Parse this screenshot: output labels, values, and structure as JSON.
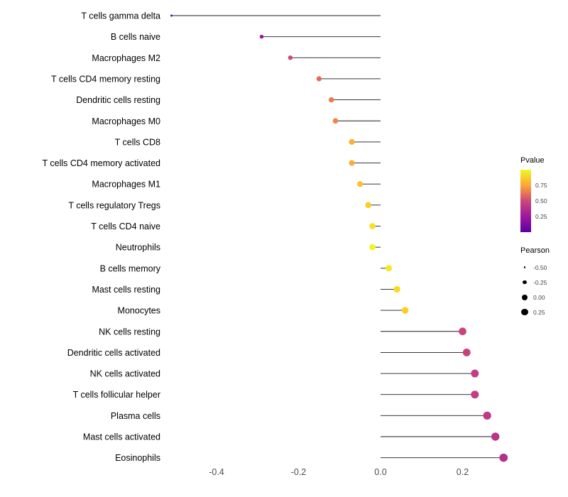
{
  "figure": {
    "background": "#ffffff"
  },
  "chart_data": {
    "type": "scatter",
    "variant": "lollipop",
    "orientation": "horizontal",
    "title": "",
    "xlabel": "",
    "ylabel": "",
    "xlim": [
      -0.55,
      0.32
    ],
    "x_ticks": [
      -0.4,
      -0.2,
      0.0,
      0.2
    ],
    "x_tick_labels": [
      "-0.4",
      "-0.2",
      "0.0",
      "0.2"
    ],
    "grid": false,
    "baseline_x": 0,
    "points": [
      {
        "label": "T cells gamma delta",
        "pearson": -0.51,
        "pvalue_approx": 0.08,
        "color": "#4b03a1"
      },
      {
        "label": "B cells naive",
        "pearson": -0.29,
        "pvalue_approx": 0.32,
        "color": "#9c179e"
      },
      {
        "label": "Macrophages M2",
        "pearson": -0.22,
        "pvalue_approx": 0.5,
        "color": "#cc4778"
      },
      {
        "label": "T cells CD4 memory resting",
        "pearson": -0.15,
        "pvalue_approx": 0.62,
        "color": "#e5695d"
      },
      {
        "label": "Dendritic cells resting",
        "pearson": -0.12,
        "pvalue_approx": 0.67,
        "color": "#ee7b4f"
      },
      {
        "label": "Macrophages M0",
        "pearson": -0.11,
        "pvalue_approx": 0.7,
        "color": "#f2844b"
      },
      {
        "label": "T cells CD8",
        "pearson": -0.07,
        "pvalue_approx": 0.84,
        "color": "#fcb231"
      },
      {
        "label": "T cells CD4 memory activated",
        "pearson": -0.07,
        "pvalue_approx": 0.83,
        "color": "#fcae32"
      },
      {
        "label": "Macrophages M1",
        "pearson": -0.05,
        "pvalue_approx": 0.88,
        "color": "#fcc32c"
      },
      {
        "label": "T cells regulatory Tregs",
        "pearson": -0.03,
        "pvalue_approx": 0.92,
        "color": "#fcce25"
      },
      {
        "label": "T cells CD4 naive",
        "pearson": -0.02,
        "pvalue_approx": 0.96,
        "color": "#f8e125"
      },
      {
        "label": "Neutrophils",
        "pearson": -0.02,
        "pvalue_approx": 0.98,
        "color": "#f1f525"
      },
      {
        "label": "B cells memory",
        "pearson": 0.02,
        "pvalue_approx": 0.97,
        "color": "#f4ea23"
      },
      {
        "label": "Mast cells resting",
        "pearson": 0.04,
        "pvalue_approx": 0.94,
        "color": "#fada24"
      },
      {
        "label": "Monocytes",
        "pearson": 0.06,
        "pvalue_approx": 0.92,
        "color": "#fcce25"
      },
      {
        "label": "NK cells resting",
        "pearson": 0.2,
        "pvalue_approx": 0.48,
        "color": "#ca4379"
      },
      {
        "label": "Dendritic cells activated",
        "pearson": 0.21,
        "pvalue_approx": 0.47,
        "color": "#c8417b"
      },
      {
        "label": "NK cells activated",
        "pearson": 0.23,
        "pvalue_approx": 0.45,
        "color": "#c43e7f"
      },
      {
        "label": "T cells follicular helper",
        "pearson": 0.23,
        "pvalue_approx": 0.45,
        "color": "#c43e7f"
      },
      {
        "label": "Plasma cells",
        "pearson": 0.26,
        "pvalue_approx": 0.42,
        "color": "#be3885"
      },
      {
        "label": "Mast cells activated",
        "pearson": 0.28,
        "pvalue_approx": 0.4,
        "color": "#ba3488"
      },
      {
        "label": "Eosinophils",
        "pearson": 0.3,
        "pvalue_approx": 0.38,
        "color": "#b52f8c"
      }
    ],
    "legends": {
      "color": {
        "title": "Pvalue",
        "tick_labels": [
          "0.75",
          "0.50",
          "0.25"
        ],
        "gradient_top_to_bottom": [
          "#f0f921",
          "#fca636",
          "#cc4778",
          "#9c179e",
          "#5b01a5"
        ],
        "position": "right"
      },
      "size": {
        "title": "Pearson",
        "entries": [
          {
            "label": "-0.50",
            "r": 1.3
          },
          {
            "label": "-0.25",
            "r": 2.7
          },
          {
            "label": "0.00",
            "r": 4.0
          },
          {
            "label": "0.25",
            "r": 4.9
          }
        ],
        "position": "right"
      }
    },
    "style": {
      "stem_color": "#1a1a1a",
      "category_label_color": "#000000",
      "tick_label_color": "#4d4d4d",
      "legend_dot_color": "#000000"
    }
  }
}
